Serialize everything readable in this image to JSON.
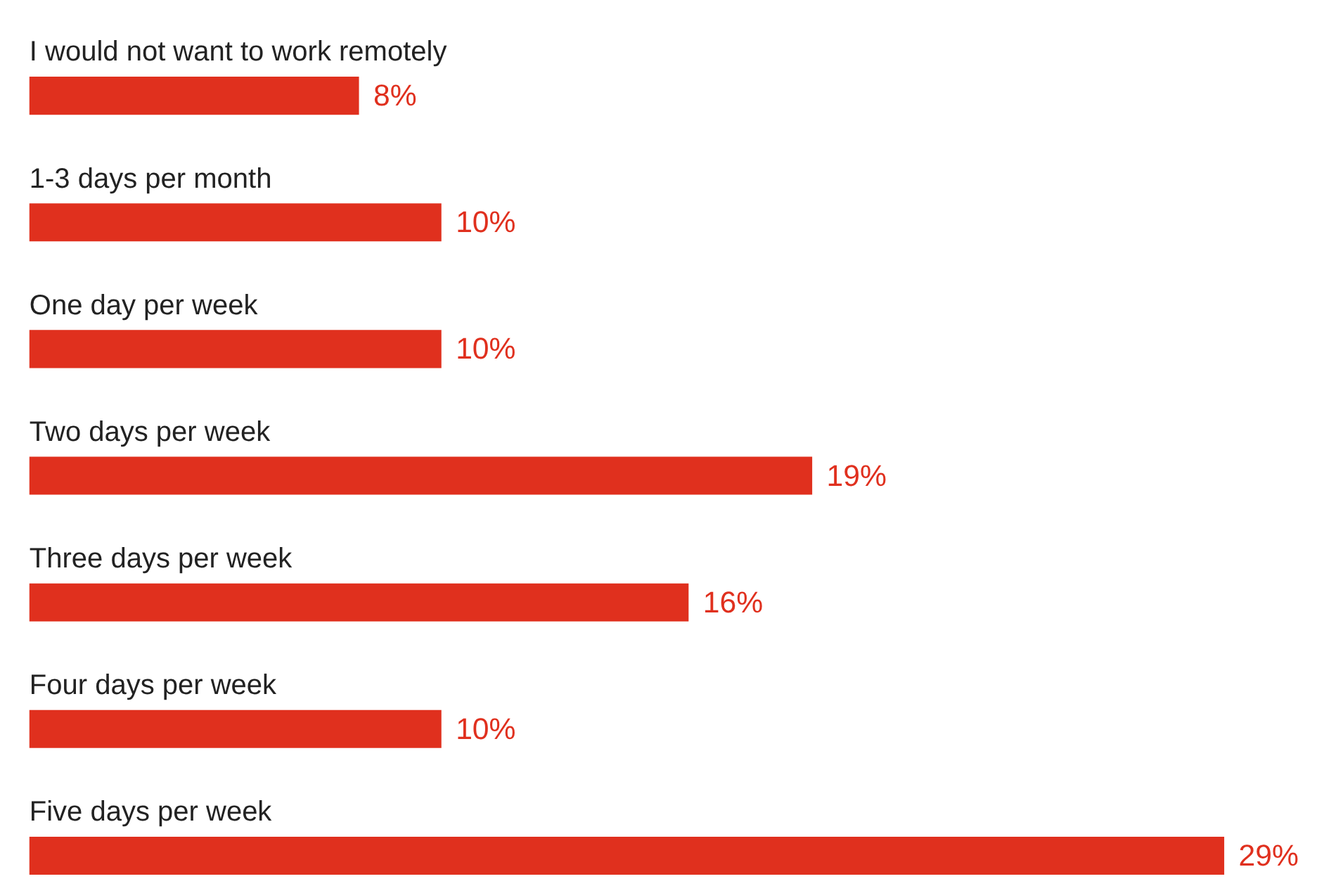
{
  "chart_data": {
    "type": "bar",
    "orientation": "horizontal",
    "categories": [
      "I would not want to work remotely",
      "1-3 days per month",
      "One day per week",
      "Two days per week",
      "Three days per week",
      "Four days per week",
      "Five days per week"
    ],
    "values": [
      8,
      10,
      10,
      19,
      16,
      10,
      29
    ],
    "value_labels": [
      "8%",
      "10%",
      "10%",
      "19%",
      "16%",
      "10%",
      "29%"
    ],
    "color": "#e0301e"
  }
}
